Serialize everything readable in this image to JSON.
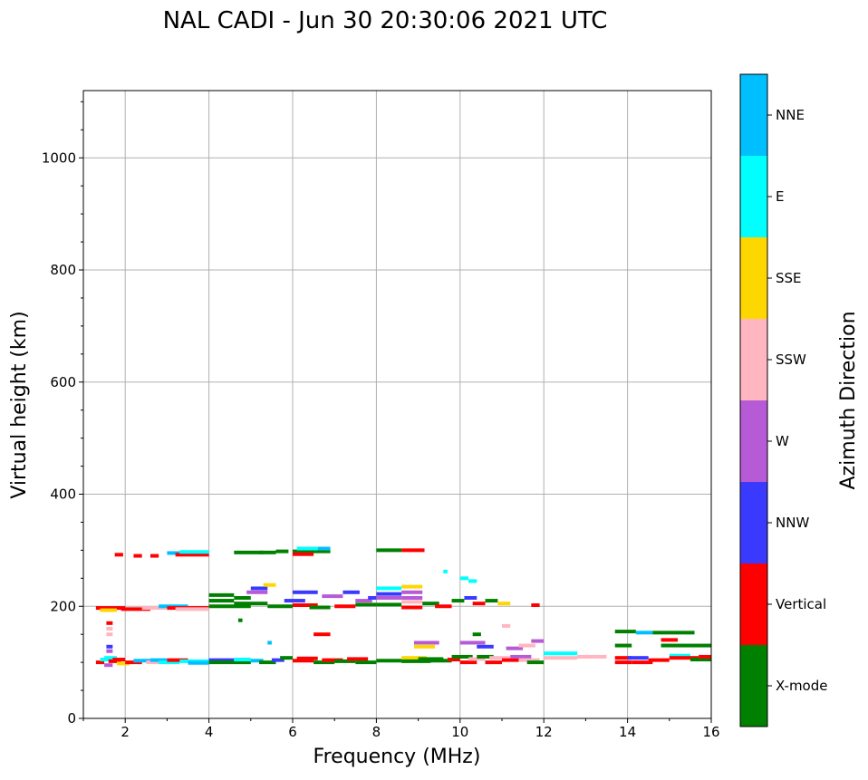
{
  "chart_data": {
    "type": "scatter",
    "title": "NAL CADI - Jun 30 20:30:06 2021 UTC",
    "xlabel": "Frequency (MHz)",
    "ylabel": "Virtual height (km)",
    "xlim": [
      1,
      16
    ],
    "ylim": [
      0,
      1120
    ],
    "xticks": [
      2,
      4,
      6,
      8,
      10,
      12,
      14,
      16
    ],
    "yticks": [
      0,
      200,
      400,
      600,
      800,
      1000
    ],
    "grid": true,
    "colorbar": {
      "label": "Azimuth Direction",
      "categories": [
        "X-mode",
        "Vertical",
        "NNW",
        "W",
        "SSW",
        "SSE",
        "E",
        "NNE"
      ],
      "colors": [
        "#008000",
        "#ff0000",
        "#3a3aff",
        "#b65ad6",
        "#ffb6c1",
        "#ffd700",
        "#00ffff",
        "#00bfff"
      ]
    },
    "segments_fields": [
      "freq_start_MHz",
      "freq_end_MHz",
      "height_km",
      "direction_index"
    ],
    "segments": [
      [
        1.3,
        1.5,
        100,
        1
      ],
      [
        1.4,
        1.6,
        105,
        6
      ],
      [
        1.5,
        1.8,
        108,
        6
      ],
      [
        1.5,
        1.7,
        95,
        3
      ],
      [
        1.55,
        1.7,
        120,
        3
      ],
      [
        1.55,
        1.7,
        128,
        2
      ],
      [
        1.6,
        1.9,
        102,
        1
      ],
      [
        1.7,
        2.0,
        105,
        1
      ],
      [
        1.8,
        2.1,
        98,
        5
      ],
      [
        2.0,
        2.4,
        100,
        1
      ],
      [
        2.2,
        2.6,
        103,
        7
      ],
      [
        2.5,
        2.9,
        100,
        4
      ],
      [
        2.6,
        3.0,
        104,
        7
      ],
      [
        2.8,
        3.3,
        100,
        6
      ],
      [
        3.0,
        3.5,
        104,
        1
      ],
      [
        3.3,
        4.0,
        102,
        6
      ],
      [
        3.5,
        4.0,
        99,
        7
      ],
      [
        4.0,
        4.6,
        104,
        2
      ],
      [
        4.0,
        5.0,
        100,
        0
      ],
      [
        4.6,
        5.0,
        105,
        6
      ],
      [
        5.0,
        5.3,
        103,
        7
      ],
      [
        5.2,
        5.6,
        100,
        0
      ],
      [
        5.5,
        5.8,
        104,
        2
      ],
      [
        5.7,
        6.0,
        108,
        0
      ],
      [
        6.0,
        6.5,
        103,
        1
      ],
      [
        6.1,
        6.6,
        107,
        1
      ],
      [
        6.5,
        7.0,
        100,
        0
      ],
      [
        6.7,
        7.2,
        104,
        1
      ],
      [
        7.0,
        7.5,
        102,
        0
      ],
      [
        7.3,
        7.8,
        106,
        1
      ],
      [
        7.5,
        8.0,
        100,
        0
      ],
      [
        8.0,
        8.6,
        103,
        0
      ],
      [
        8.6,
        9.2,
        108,
        5
      ],
      [
        8.6,
        9.3,
        102,
        0
      ],
      [
        9.0,
        9.6,
        106,
        0
      ],
      [
        9.3,
        9.8,
        103,
        0
      ],
      [
        9.7,
        10.0,
        105,
        1
      ],
      [
        9.8,
        10.3,
        110,
        0
      ],
      [
        10.0,
        10.4,
        100,
        1
      ],
      [
        10.2,
        10.6,
        106,
        4
      ],
      [
        10.4,
        10.8,
        110,
        0
      ],
      [
        10.6,
        11.0,
        100,
        1
      ],
      [
        10.7,
        11.2,
        108,
        4
      ],
      [
        11.0,
        11.4,
        104,
        1
      ],
      [
        11.2,
        11.7,
        110,
        3
      ],
      [
        11.4,
        11.9,
        104,
        4
      ],
      [
        11.6,
        12.0,
        100,
        0
      ],
      [
        12.0,
        12.8,
        116,
        6
      ],
      [
        12.0,
        12.8,
        108,
        4
      ],
      [
        12.8,
        13.5,
        110,
        4
      ],
      [
        13.7,
        14.1,
        108,
        1
      ],
      [
        13.7,
        14.1,
        100,
        1
      ],
      [
        14.0,
        14.5,
        108,
        2
      ],
      [
        14.1,
        14.6,
        100,
        1
      ],
      [
        14.5,
        15.0,
        104,
        1
      ],
      [
        15.0,
        15.5,
        112,
        6
      ],
      [
        15.0,
        15.7,
        108,
        1
      ],
      [
        15.5,
        16.0,
        105,
        0
      ],
      [
        15.7,
        16.0,
        110,
        1
      ],
      [
        1.55,
        1.7,
        150,
        4
      ],
      [
        1.55,
        1.7,
        160,
        4
      ],
      [
        1.55,
        1.7,
        170,
        1
      ],
      [
        4.7,
        4.8,
        175,
        0
      ],
      [
        5.4,
        5.5,
        135,
        7
      ],
      [
        6.5,
        6.9,
        150,
        1
      ],
      [
        8.9,
        9.5,
        135,
        3
      ],
      [
        8.9,
        9.4,
        128,
        5
      ],
      [
        10.0,
        10.6,
        135,
        3
      ],
      [
        10.4,
        10.8,
        128,
        2
      ],
      [
        11.1,
        11.5,
        125,
        3
      ],
      [
        11.4,
        11.8,
        130,
        4
      ],
      [
        11.7,
        12.0,
        138,
        3
      ],
      [
        13.7,
        14.2,
        155,
        0
      ],
      [
        14.2,
        14.6,
        153,
        7
      ],
      [
        14.6,
        15.6,
        153,
        0
      ],
      [
        14.8,
        15.2,
        140,
        1
      ],
      [
        14.8,
        16.0,
        130,
        0
      ],
      [
        13.7,
        14.1,
        130,
        0
      ],
      [
        10.3,
        10.5,
        150,
        0
      ],
      [
        11.0,
        11.2,
        165,
        4
      ],
      [
        12.8,
        13.0,
        110,
        4
      ],
      [
        1.3,
        2.0,
        197,
        1
      ],
      [
        1.4,
        1.8,
        193,
        5
      ],
      [
        1.9,
        2.6,
        195,
        1
      ],
      [
        2.4,
        3.0,
        197,
        4
      ],
      [
        2.8,
        3.5,
        200,
        7
      ],
      [
        3.0,
        4.0,
        197,
        1
      ],
      [
        3.2,
        4.0,
        195,
        4
      ],
      [
        4.0,
        5.0,
        200,
        0
      ],
      [
        4.0,
        4.6,
        210,
        0
      ],
      [
        4.0,
        4.6,
        220,
        0
      ],
      [
        4.6,
        5.4,
        205,
        0
      ],
      [
        4.6,
        5.0,
        215,
        0
      ],
      [
        4.9,
        5.4,
        225,
        3
      ],
      [
        5.0,
        5.4,
        232,
        2
      ],
      [
        5.3,
        5.6,
        238,
        5
      ],
      [
        5.4,
        6.0,
        200,
        0
      ],
      [
        5.8,
        6.3,
        210,
        2
      ],
      [
        6.0,
        6.6,
        202,
        1
      ],
      [
        6.0,
        6.6,
        225,
        2
      ],
      [
        6.4,
        6.9,
        198,
        0
      ],
      [
        6.7,
        7.2,
        218,
        3
      ],
      [
        7.0,
        7.5,
        200,
        1
      ],
      [
        7.2,
        7.6,
        225,
        2
      ],
      [
        7.5,
        8.0,
        203,
        0
      ],
      [
        7.5,
        7.9,
        210,
        3
      ],
      [
        7.8,
        8.0,
        215,
        2
      ],
      [
        8.0,
        8.6,
        203,
        0
      ],
      [
        8.0,
        8.6,
        215,
        3
      ],
      [
        8.0,
        8.6,
        222,
        2
      ],
      [
        8.0,
        8.6,
        232,
        6
      ],
      [
        8.6,
        9.1,
        235,
        5
      ],
      [
        8.6,
        9.1,
        225,
        3
      ],
      [
        8.6,
        9.1,
        215,
        3
      ],
      [
        8.6,
        9.1,
        208,
        4
      ],
      [
        8.6,
        9.1,
        198,
        1
      ],
      [
        9.1,
        9.5,
        205,
        0
      ],
      [
        9.4,
        9.8,
        200,
        1
      ],
      [
        9.8,
        10.1,
        210,
        0
      ],
      [
        10.1,
        10.4,
        215,
        2
      ],
      [
        10.3,
        10.6,
        205,
        1
      ],
      [
        10.6,
        10.9,
        210,
        0
      ],
      [
        10.9,
        11.2,
        205,
        5
      ],
      [
        11.7,
        11.9,
        202,
        1
      ],
      [
        9.6,
        9.7,
        262,
        6
      ],
      [
        10.0,
        10.2,
        250,
        6
      ],
      [
        10.2,
        10.4,
        245,
        6
      ],
      [
        1.75,
        1.95,
        292,
        1
      ],
      [
        2.2,
        2.4,
        290,
        1
      ],
      [
        2.6,
        2.8,
        290,
        1
      ],
      [
        3.0,
        3.3,
        295,
        7
      ],
      [
        3.2,
        4.0,
        292,
        1
      ],
      [
        3.3,
        4.0,
        297,
        6
      ],
      [
        4.6,
        5.3,
        296,
        0
      ],
      [
        5.2,
        5.6,
        296,
        0
      ],
      [
        5.6,
        5.9,
        298,
        0
      ],
      [
        6.0,
        6.9,
        298,
        0
      ],
      [
        6.1,
        6.6,
        303,
        6
      ],
      [
        6.6,
        6.9,
        303,
        7
      ],
      [
        6.0,
        6.5,
        293,
        1
      ],
      [
        8.0,
        8.6,
        300,
        0
      ],
      [
        8.6,
        9.15,
        300,
        1
      ]
    ]
  }
}
